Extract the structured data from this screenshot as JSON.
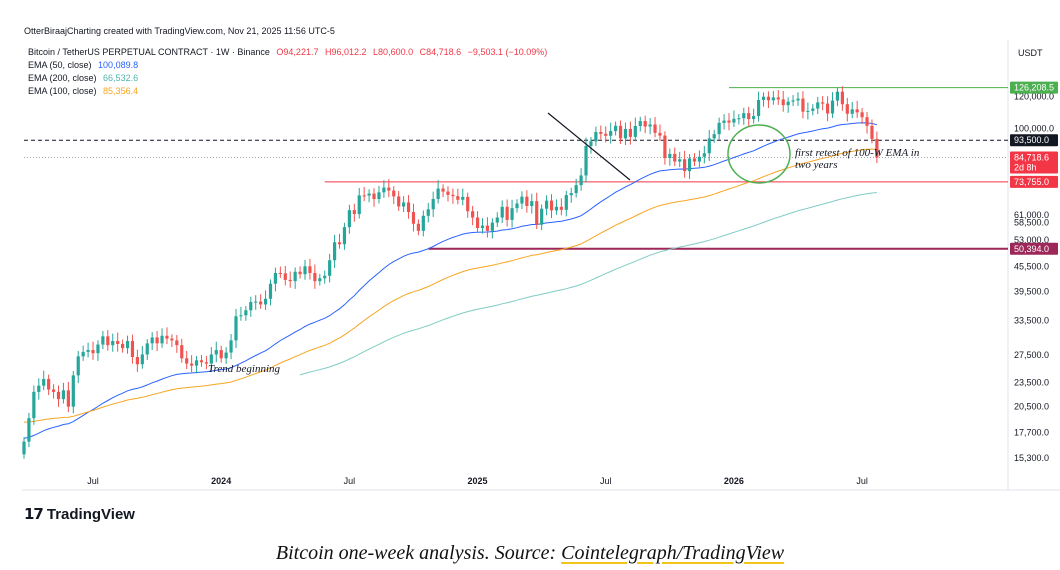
{
  "header": {
    "text": "OtterBiraajCharting created with TradingView.com, Nov 21, 2025 11:56 UTC-5"
  },
  "symbol_line": {
    "name": "Bitcoin / TetherUS PERPETUAL CONTRACT · 1W · Binance",
    "open": "O94,221.7",
    "high": "H96,012.2",
    "low": "L80,600.0",
    "close": "C84,718.6",
    "change": "−9,503.1 (−10.09%)"
  },
  "ema_legend": [
    {
      "label": "EMA (50, close)",
      "value": "100,089.8",
      "color": "#2962ff"
    },
    {
      "label": "EMA (200, close)",
      "value": "66,532.6",
      "color": "#4db6ac"
    },
    {
      "label": "EMA (100, close)",
      "value": "85,356.4",
      "color": "#f5a623"
    }
  ],
  "currency": "USDT",
  "logo_text": "TradingView",
  "caption": {
    "prefix": "Bitcoin one-week analysis. Source: ",
    "source": "Cointelegraph/TradingView"
  },
  "chart_data": {
    "type": "candlestick",
    "scale": "log",
    "ylim": [
      13500,
      146000
    ],
    "y_ticks": [
      {
        "value": 120000,
        "label": "120,000.0"
      },
      {
        "value": 100000,
        "label": "100,000.0"
      },
      {
        "value": 61000,
        "label": "61,000.0"
      },
      {
        "value": 58500,
        "label": "58,500.0"
      },
      {
        "value": 53000,
        "label": "53,000.0"
      },
      {
        "value": 45500,
        "label": "45,500.0"
      },
      {
        "value": 39500,
        "label": "39,500.0"
      },
      {
        "value": 33500,
        "label": "33,500.0"
      },
      {
        "value": 27500,
        "label": "27,500.0"
      },
      {
        "value": 23500,
        "label": "23,500.0"
      },
      {
        "value": 20500,
        "label": "20,500.0"
      },
      {
        "value": 17700,
        "label": "17,700.0"
      },
      {
        "value": 15300,
        "label": "15,300.0"
      }
    ],
    "price_badges": [
      {
        "value": 126208.5,
        "label": "126,208.5",
        "color": "#4caf50"
      },
      {
        "value": 93500,
        "label": "93,500.0",
        "color": "#131722"
      },
      {
        "value": 84718.6,
        "label": "84,718.6",
        "sub": "2d 8h",
        "color": "#f23645"
      },
      {
        "value": 73755,
        "label": "73,755.0",
        "color": "#f23645"
      },
      {
        "value": 50394,
        "label": "50,394.0",
        "color": "#9c2758"
      }
    ],
    "x_ticks": [
      {
        "week": 14,
        "label": "Jul",
        "bold": false
      },
      {
        "week": 40,
        "label": "2024",
        "bold": true
      },
      {
        "week": 66,
        "label": "Jul",
        "bold": false
      },
      {
        "week": 92,
        "label": "2025",
        "bold": true
      },
      {
        "week": 118,
        "label": "Jul",
        "bold": false
      },
      {
        "week": 144,
        "label": "2026",
        "bold": true
      },
      {
        "week": 170,
        "label": "Jul",
        "bold": false
      }
    ],
    "candle_closes": [
      16800,
      19200,
      22300,
      23100,
      24000,
      22600,
      22300,
      21400,
      22500,
      20500,
      24500,
      27300,
      28000,
      28300,
      27800,
      29200,
      30600,
      29100,
      29800,
      29300,
      28600,
      29800,
      27200,
      26100,
      27600,
      29400,
      30400,
      29400,
      30700,
      30200,
      29900,
      29100,
      27000,
      26200,
      25900,
      26700,
      26400,
      26200,
      27600,
      28300,
      27000,
      27900,
      29900,
      34300,
      34500,
      35500,
      37200,
      37300,
      36700,
      37900,
      41300,
      43900,
      43800,
      42200,
      41900,
      44200,
      43600,
      45600,
      43900,
      41900,
      42600,
      43200,
      47200,
      52300,
      51700,
      57000,
      62800,
      61400,
      68300,
      68200,
      69000,
      66900,
      69500,
      71400,
      70200,
      67900,
      64100,
      65600,
      62100,
      58100,
      55800,
      60800,
      63100,
      66900,
      71000,
      69800,
      68500,
      68000,
      66600,
      67700,
      62400,
      60200,
      56700,
      57500,
      55800,
      58500,
      60200,
      64000,
      59400,
      63500,
      65200,
      67800,
      64300,
      66100,
      57800,
      63300,
      66300,
      62700,
      64000,
      62900,
      68400,
      69200,
      72400,
      76500,
      90500,
      92900,
      98000,
      97000,
      95900,
      98500,
      101500,
      94500,
      99700,
      95300,
      101400,
      104300,
      101100,
      102300,
      97500,
      96000,
      84500,
      86500,
      82800,
      83900,
      78400,
      84300,
      82800,
      85100,
      86800,
      94500,
      96800,
      103200,
      104600,
      103400,
      105600,
      106000,
      109100,
      105500,
      107300,
      117600,
      119800,
      117400,
      119300,
      118000,
      114200,
      116500,
      117300,
      118500,
      110000,
      110500,
      112000,
      116000,
      115200,
      108900,
      117200,
      123300,
      114800,
      108700,
      111500,
      109600,
      106600,
      101500,
      94200,
      84718.6
    ],
    "ema_50_endpoints": {
      "week_start": 0,
      "week_end": 156
    },
    "annotations": [
      {
        "text": "Trend beginning"
      },
      {
        "text": "first retest of 100-W EMA in two years"
      }
    ],
    "horizontal_levels": [
      126208.5,
      93500,
      84718.6,
      73755,
      50394
    ],
    "grid": false
  }
}
